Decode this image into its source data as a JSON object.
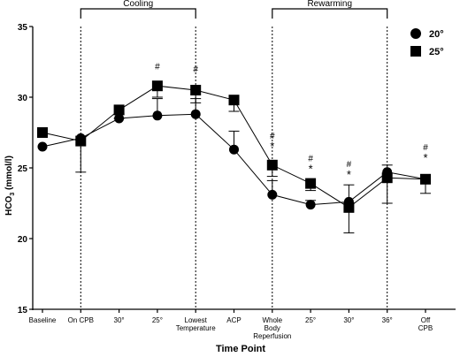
{
  "chart_data": {
    "type": "line",
    "xlabel": "Time Point",
    "ylabel": "HCO",
    "ylabel_sub": "3",
    "ylabel_unit": "(mmol/l)",
    "ylim": [
      15,
      35
    ],
    "yticks": [
      15,
      20,
      25,
      30,
      35
    ],
    "categories": [
      [
        "Baseline"
      ],
      [
        "On CPB"
      ],
      [
        "30°"
      ],
      [
        "25°"
      ],
      [
        "Lowest",
        "Temperature"
      ],
      [
        "ACP"
      ],
      [
        "Whole",
        "Body",
        "Reperfusion"
      ],
      [
        "25°"
      ],
      [
        "30°"
      ],
      [
        "36°"
      ],
      [
        "Off",
        "CPB"
      ]
    ],
    "brackets": [
      {
        "label": "Cooling",
        "from": 1,
        "to": 4
      },
      {
        "label": "Rewarming",
        "from": 6,
        "to": 9
      }
    ],
    "dashed_lines_at": [
      1,
      4,
      6,
      9
    ],
    "legend_position": "top-right",
    "series": [
      {
        "name": "20°",
        "marker": "circle",
        "values": [
          26.5,
          27.1,
          28.5,
          28.7,
          28.8,
          26.3,
          23.1,
          22.4,
          22.6,
          24.7,
          24.2
        ],
        "errors": [
          null,
          null,
          0.3,
          1.2,
          1.1,
          1.3,
          1.0,
          0.3,
          1.2,
          0.5,
          null
        ],
        "marks": [
          "",
          "",
          "",
          "",
          "",
          "",
          "",
          "",
          "",
          "",
          ""
        ]
      },
      {
        "name": "25°",
        "marker": "square",
        "values": [
          27.5,
          26.9,
          29.1,
          30.8,
          30.5,
          29.8,
          25.2,
          23.9,
          22.2,
          24.3,
          24.2
        ],
        "errors": [
          null,
          2.2,
          0.6,
          0.8,
          0.9,
          0.8,
          0.8,
          0.5,
          1.8,
          1.8,
          1.0
        ],
        "marks": [
          "",
          "",
          "",
          "#",
          "#",
          "",
          "#*",
          "#*",
          "#*",
          "",
          "#*"
        ]
      }
    ]
  }
}
